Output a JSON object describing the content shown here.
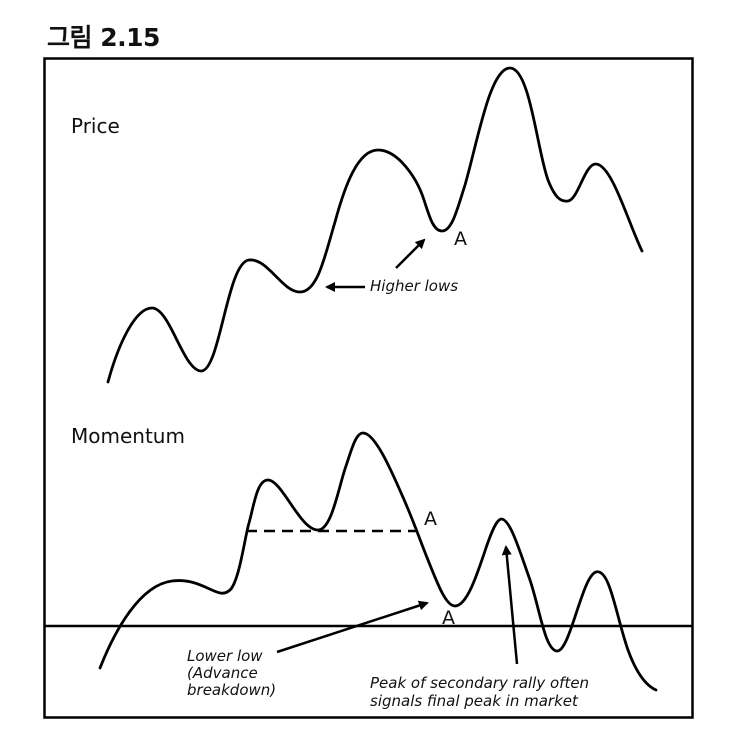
{
  "figure": {
    "title": "그림 2.15"
  },
  "panels": {
    "price": {
      "label": "Price"
    },
    "momentum": {
      "label": "Momentum"
    }
  },
  "annotations": {
    "higher_lows": "Higher lows",
    "price_point_a": "A",
    "momentum_point_a_upper": "A",
    "momentum_point_a_lower": "A",
    "lower_low": [
      "Lower low",
      "(Advance",
      "breakdown)"
    ],
    "peak_note": [
      "Peak of secondary rally often",
      "signals final peak in market"
    ]
  },
  "colors": {
    "line": "#000000",
    "background": "#ffffff"
  }
}
